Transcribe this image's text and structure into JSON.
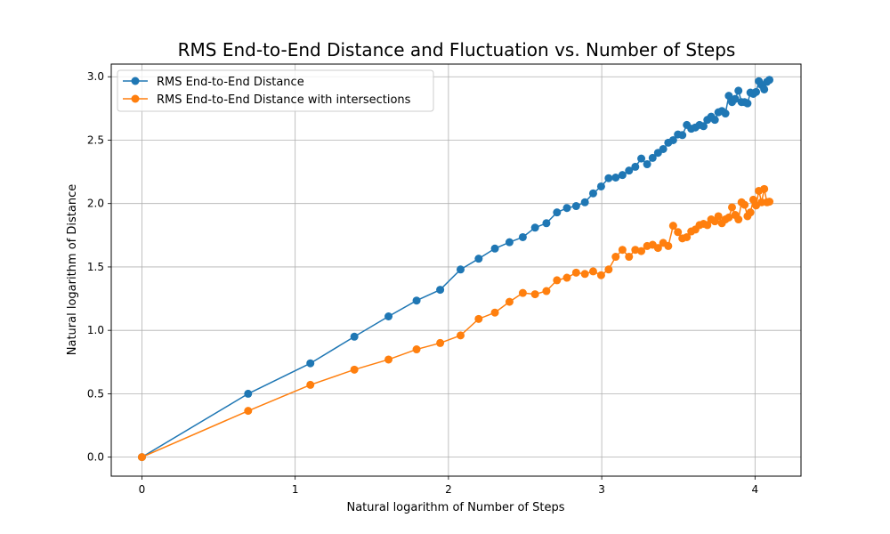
{
  "chart_data": {
    "type": "line",
    "title": "RMS End-to-End Distance and Fluctuation vs. Number of Steps",
    "xlabel": "Natural logarithm of Number of Steps",
    "ylabel": "Natural logarithm of Distance",
    "xlim": [
      -0.2,
      4.3
    ],
    "ylim": [
      -0.15,
      3.1
    ],
    "x_ticks": [
      0,
      1,
      2,
      3,
      4
    ],
    "y_ticks": [
      0.0,
      0.5,
      1.0,
      1.5,
      2.0,
      2.5,
      3.0
    ],
    "x_tick_labels": [
      "0",
      "1",
      "2",
      "3",
      "4"
    ],
    "y_tick_labels": [
      "0.0",
      "0.5",
      "1.0",
      "1.5",
      "2.0",
      "2.5",
      "3.0"
    ],
    "grid": true,
    "legend_position": "top-left",
    "series": [
      {
        "name": "RMS End-to-End Distance",
        "color": "#1f77b4",
        "marker": "circle",
        "points": [
          [
            0.0,
            0.0
          ],
          [
            0.693,
            0.5
          ],
          [
            1.099,
            0.74
          ],
          [
            1.386,
            0.95
          ],
          [
            1.609,
            1.11
          ],
          [
            1.792,
            1.235
          ],
          [
            1.946,
            1.32
          ],
          [
            2.079,
            1.48
          ],
          [
            2.197,
            1.565
          ],
          [
            2.303,
            1.645
          ],
          [
            2.398,
            1.695
          ],
          [
            2.485,
            1.735
          ],
          [
            2.565,
            1.81
          ],
          [
            2.639,
            1.845
          ],
          [
            2.708,
            1.93
          ],
          [
            2.773,
            1.965
          ],
          [
            2.833,
            1.98
          ],
          [
            2.89,
            2.01
          ],
          [
            2.944,
            2.08
          ],
          [
            2.996,
            2.135
          ],
          [
            3.045,
            2.2
          ],
          [
            3.091,
            2.205
          ],
          [
            3.135,
            2.225
          ],
          [
            3.178,
            2.26
          ],
          [
            3.219,
            2.29
          ],
          [
            3.258,
            2.355
          ],
          [
            3.296,
            2.31
          ],
          [
            3.332,
            2.36
          ],
          [
            3.367,
            2.4
          ],
          [
            3.401,
            2.43
          ],
          [
            3.434,
            2.48
          ],
          [
            3.466,
            2.5
          ],
          [
            3.497,
            2.545
          ],
          [
            3.526,
            2.54
          ],
          [
            3.555,
            2.62
          ],
          [
            3.584,
            2.59
          ],
          [
            3.611,
            2.6
          ],
          [
            3.638,
            2.62
          ],
          [
            3.664,
            2.61
          ],
          [
            3.689,
            2.66
          ],
          [
            3.714,
            2.685
          ],
          [
            3.738,
            2.66
          ],
          [
            3.761,
            2.72
          ],
          [
            3.784,
            2.73
          ],
          [
            3.807,
            2.71
          ],
          [
            3.829,
            2.85
          ],
          [
            3.85,
            2.8
          ],
          [
            3.871,
            2.825
          ],
          [
            3.892,
            2.89
          ],
          [
            3.912,
            2.8
          ],
          [
            3.932,
            2.8
          ],
          [
            3.951,
            2.79
          ],
          [
            3.97,
            2.875
          ],
          [
            3.989,
            2.865
          ],
          [
            4.007,
            2.88
          ],
          [
            4.025,
            2.965
          ],
          [
            4.043,
            2.935
          ],
          [
            4.06,
            2.9
          ],
          [
            4.078,
            2.96
          ],
          [
            4.094,
            2.975
          ]
        ]
      },
      {
        "name": "RMS End-to-End Distance with intersections",
        "color": "#ff7f0e",
        "marker": "circle",
        "points": [
          [
            0.0,
            0.0
          ],
          [
            0.693,
            0.365
          ],
          [
            1.099,
            0.57
          ],
          [
            1.386,
            0.69
          ],
          [
            1.609,
            0.77
          ],
          [
            1.792,
            0.85
          ],
          [
            1.946,
            0.9
          ],
          [
            2.079,
            0.96
          ],
          [
            2.197,
            1.09
          ],
          [
            2.303,
            1.14
          ],
          [
            2.398,
            1.225
          ],
          [
            2.485,
            1.295
          ],
          [
            2.565,
            1.285
          ],
          [
            2.639,
            1.31
          ],
          [
            2.708,
            1.395
          ],
          [
            2.773,
            1.415
          ],
          [
            2.833,
            1.455
          ],
          [
            2.89,
            1.445
          ],
          [
            2.944,
            1.465
          ],
          [
            2.996,
            1.435
          ],
          [
            3.045,
            1.48
          ],
          [
            3.091,
            1.58
          ],
          [
            3.135,
            1.635
          ],
          [
            3.178,
            1.58
          ],
          [
            3.219,
            1.635
          ],
          [
            3.258,
            1.625
          ],
          [
            3.296,
            1.665
          ],
          [
            3.332,
            1.675
          ],
          [
            3.367,
            1.65
          ],
          [
            3.401,
            1.69
          ],
          [
            3.434,
            1.665
          ],
          [
            3.466,
            1.825
          ],
          [
            3.497,
            1.775
          ],
          [
            3.526,
            1.725
          ],
          [
            3.555,
            1.735
          ],
          [
            3.584,
            1.78
          ],
          [
            3.611,
            1.795
          ],
          [
            3.638,
            1.83
          ],
          [
            3.664,
            1.84
          ],
          [
            3.689,
            1.83
          ],
          [
            3.714,
            1.875
          ],
          [
            3.738,
            1.86
          ],
          [
            3.761,
            1.9
          ],
          [
            3.784,
            1.845
          ],
          [
            3.807,
            1.875
          ],
          [
            3.829,
            1.89
          ],
          [
            3.85,
            1.97
          ],
          [
            3.871,
            1.91
          ],
          [
            3.892,
            1.875
          ],
          [
            3.912,
            2.01
          ],
          [
            3.932,
            1.99
          ],
          [
            3.951,
            1.9
          ],
          [
            3.97,
            1.93
          ],
          [
            3.989,
            2.03
          ],
          [
            4.007,
            1.985
          ],
          [
            4.025,
            2.1
          ],
          [
            4.043,
            2.01
          ],
          [
            4.06,
            2.115
          ],
          [
            4.078,
            2.01
          ],
          [
            4.094,
            2.015
          ]
        ]
      }
    ]
  }
}
